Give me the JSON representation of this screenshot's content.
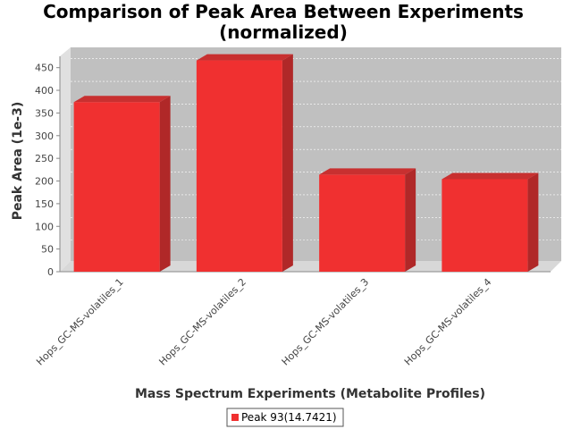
{
  "chart_data": {
    "type": "bar",
    "title_line1": "Comparison of Peak Area Between Experiments",
    "title_line2": "(normalized)",
    "xlabel": "Mass Spectrum Experiments (Metabolite Profiles)",
    "ylabel": "Peak Area (1e-3)",
    "categories": [
      "Hops_GC-MS-volatiles_1",
      "Hops_GC-MS-volatiles_2",
      "Hops_GC-MS-volatiles_3",
      "Hops_GC-MS-volatiles_4"
    ],
    "series": [
      {
        "name": "Peak 93(14.7421)",
        "values": [
          374,
          466,
          214,
          204
        ],
        "color": "#f03030"
      }
    ],
    "ylim": [
      0,
      475
    ],
    "yticks": [
      0,
      50,
      100,
      150,
      200,
      250,
      300,
      350,
      400,
      450
    ],
    "grid": true,
    "legend_position": "bottom",
    "plot_background": "#c0c0c0"
  }
}
